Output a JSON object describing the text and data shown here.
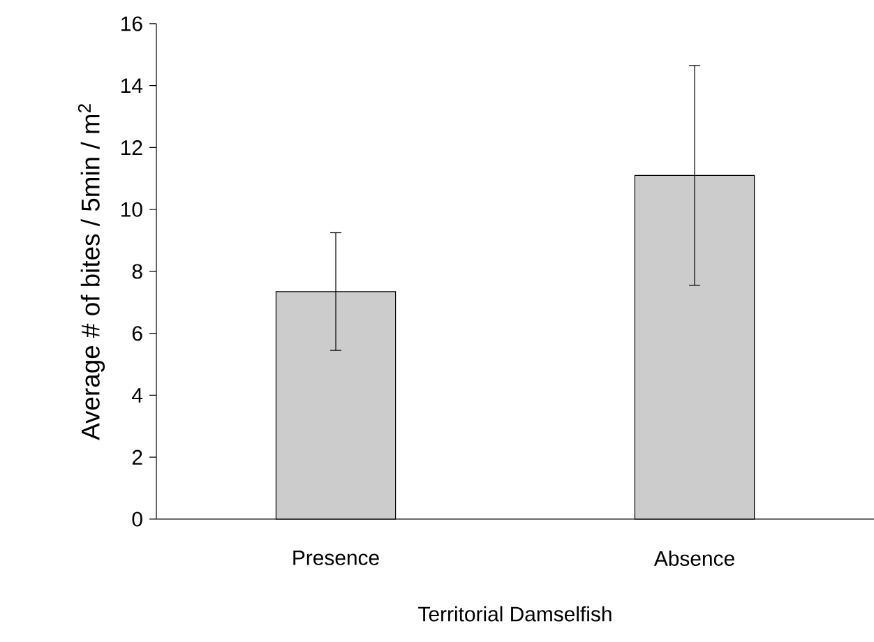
{
  "chart_data": {
    "type": "bar",
    "xlabel": "Territorial Damselfish",
    "ylabel": "Average # of bites / 5min / m$^{2}$",
    "categories": [
      "Presence",
      "Absence"
    ],
    "values": [
      7.35,
      11.1
    ],
    "errors": [
      1.9,
      3.55
    ],
    "color": "#cccccc",
    "ylim": [
      0,
      16
    ],
    "yticks": [
      0,
      2,
      4,
      6,
      8,
      10,
      12,
      14,
      16
    ]
  }
}
